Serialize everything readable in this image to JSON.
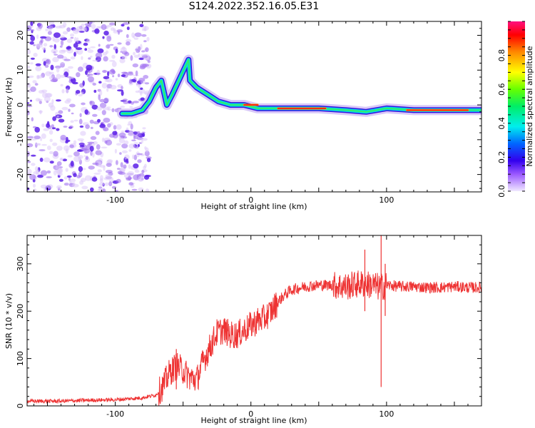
{
  "title": "S124.2022.352.16.05.E31",
  "chart_data": [
    {
      "type": "heatmap",
      "xlabel": "Height of straight line (km)",
      "ylabel": "Frequency (Hz)",
      "xlim": [
        -165,
        170
      ],
      "ylim": [
        -25,
        24
      ],
      "xticks": [
        -100,
        0,
        100
      ],
      "yticks": [
        -20,
        -10,
        0,
        10,
        20
      ],
      "colorbar": {
        "label": "Normalized spectral amplitude",
        "range": [
          0,
          1
        ],
        "ticks": [
          0.0,
          0.2,
          0.4,
          0.6,
          0.8
        ]
      },
      "noise_region_x": [
        -165,
        -85
      ],
      "ridge": [
        {
          "x": -95,
          "y": -2.5
        },
        {
          "x": -88,
          "y": -2.5
        },
        {
          "x": -80,
          "y": -1.5
        },
        {
          "x": -75,
          "y": 1
        },
        {
          "x": -70,
          "y": 5
        },
        {
          "x": -66,
          "y": 7
        },
        {
          "x": -62,
          "y": 0
        },
        {
          "x": -58,
          "y": 3
        },
        {
          "x": -52,
          "y": 8
        },
        {
          "x": -46,
          "y": 13
        },
        {
          "x": -45,
          "y": 7
        },
        {
          "x": -40,
          "y": 5
        },
        {
          "x": -32,
          "y": 3
        },
        {
          "x": -24,
          "y": 1
        },
        {
          "x": -15,
          "y": 0
        },
        {
          "x": -5,
          "y": 0
        },
        {
          "x": 5,
          "y": -1
        },
        {
          "x": 20,
          "y": -1
        },
        {
          "x": 50,
          "y": -1
        },
        {
          "x": 70,
          "y": -1.5
        },
        {
          "x": 85,
          "y": -2
        },
        {
          "x": 100,
          "y": -1
        },
        {
          "x": 120,
          "y": -1.5
        },
        {
          "x": 150,
          "y": -1.5
        },
        {
          "x": 170,
          "y": -1.5
        }
      ]
    },
    {
      "type": "line",
      "xlabel": "Height of straight line (km)",
      "ylabel": "SNR (10 * v/v)",
      "xlim": [
        -165,
        170
      ],
      "ylim": [
        0,
        360
      ],
      "xticks": [
        -100,
        0,
        100
      ],
      "yticks": [
        0,
        100,
        200,
        300
      ],
      "series": [
        {
          "color": "#ee3333",
          "x": [
            -165,
            -140,
            -120,
            -100,
            -80,
            -70,
            -65,
            -60,
            -55,
            -50,
            -45,
            -40,
            -35,
            -30,
            -25,
            -20,
            -15,
            -10,
            -5,
            0,
            5,
            10,
            15,
            20,
            25,
            30,
            40,
            50,
            60,
            70,
            80,
            90,
            95,
            100,
            110,
            120,
            130,
            140,
            150,
            160,
            170
          ],
          "values": [
            10,
            10,
            12,
            13,
            17,
            23,
            40,
            70,
            85,
            75,
            60,
            55,
            95,
            125,
            155,
            160,
            150,
            150,
            160,
            170,
            180,
            185,
            200,
            220,
            235,
            245,
            252,
            255,
            255,
            252,
            258,
            255,
            250,
            255,
            252,
            252,
            250,
            250,
            252,
            250,
            250
          ],
          "spikes": [
            {
              "x": 84,
              "min": 200,
              "max": 330
            },
            {
              "x": 96,
              "min": 40,
              "max": 360
            },
            {
              "x": 99,
              "min": 190,
              "max": 300
            },
            {
              "x": -55,
              "min": 35,
              "max": 120
            }
          ]
        }
      ]
    }
  ]
}
